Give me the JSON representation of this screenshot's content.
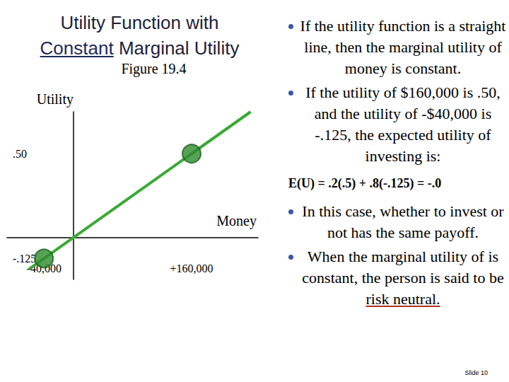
{
  "slide_title": [
    [
      {
        "text": "Utility Function with"
      }
    ],
    [
      {
        "text": "Constant",
        "underline": true
      },
      {
        "text": " Marginal Utility"
      }
    ]
  ],
  "chart_data": {
    "type": "line",
    "subtitle": "Figure 19.4",
    "y_label": "Utility",
    "x_label": "Money",
    "xlim": [
      -90000,
      250000
    ],
    "ylim": [
      -0.25,
      0.75
    ],
    "xticks": [
      {
        "value": -40000,
        "label": "-40,000"
      },
      {
        "value": 160000,
        "label": "+160,000"
      }
    ],
    "yticks": [
      {
        "value": 0.5,
        "label": ".50"
      },
      {
        "value": -0.125,
        "label": "-.125"
      }
    ],
    "grid": false,
    "series": [
      {
        "type": "line",
        "color": "#3aaa35",
        "x": [
          -60000,
          -40000,
          160000,
          240000
        ],
        "values": [
          -0.1875,
          -0.125,
          0.5,
          0.75
        ]
      },
      {
        "type": "scatter",
        "color": "#2e8b2e",
        "marker": "circle",
        "x": [
          -40000,
          160000
        ],
        "values": [
          -0.125,
          0.5
        ]
      }
    ]
  },
  "right_column": [
    {
      "kind": "bullet",
      "segments": [
        {
          "text": "If the utility function is a straight line, then the marginal utility of money is constant."
        }
      ]
    },
    {
      "kind": "bullet",
      "segments": [
        {
          "text": "If the utility of $160,000 is .50, and the utility of -$40,000 is -.125, the expected utility of investing is:"
        }
      ]
    },
    {
      "kind": "formula",
      "text": "E(U) = .2(.5) + .8(-.125) = -.0"
    },
    {
      "kind": "bullet",
      "segments": [
        {
          "text": "In this case, whether to invest or not has the same payoff."
        }
      ]
    },
    {
      "kind": "bullet",
      "segments": [
        {
          "text": "When the marginal utility of is constant, the person is said to be "
        },
        {
          "text": "risk neutral.",
          "underline": true
        }
      ]
    }
  ],
  "footer": "Slide 10"
}
